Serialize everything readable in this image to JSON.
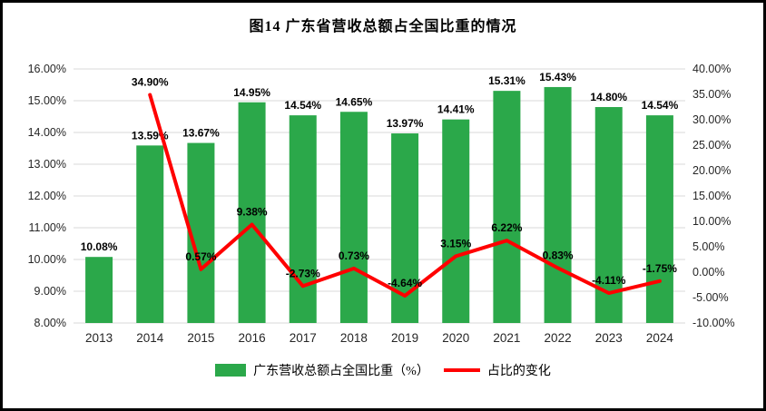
{
  "title": "图14  广东省营收总额占全国比重的情况",
  "legend": {
    "bars": "广东营收总额占全国比重（%）",
    "line": "占比的变化"
  },
  "colors": {
    "bar": "#2BA84A",
    "line": "#FF0000",
    "gridline": "#D9D9D9",
    "axis_text": "#262626",
    "label_text": "#000000"
  },
  "chart_data": {
    "type": "bar",
    "subtype": "bar+line combo, dual axis",
    "title": "图14  广东省营收总额占全国比重的情况",
    "categories": [
      "2013",
      "2014",
      "2015",
      "2016",
      "2017",
      "2018",
      "2019",
      "2020",
      "2021",
      "2022",
      "2023",
      "2024"
    ],
    "series": [
      {
        "name": "广东营收总额占全国比重（%）",
        "type": "bar",
        "axis": "left",
        "values": [
          10.08,
          13.59,
          13.67,
          14.95,
          14.54,
          14.65,
          13.97,
          14.41,
          15.31,
          15.43,
          14.8,
          14.54
        ]
      },
      {
        "name": "占比的变化",
        "type": "line",
        "axis": "right",
        "values": [
          null,
          34.9,
          0.57,
          9.38,
          -2.73,
          0.73,
          -4.64,
          3.15,
          6.22,
          0.83,
          -4.11,
          -1.75
        ]
      }
    ],
    "left_axis": {
      "min": 8,
      "max": 16,
      "step": 1,
      "format": "percent2",
      "tick_labels": [
        "8.00%",
        "9.00%",
        "10.00%",
        "11.00%",
        "12.00%",
        "13.00%",
        "14.00%",
        "15.00%",
        "16.00%"
      ]
    },
    "right_axis": {
      "min": -10,
      "max": 40,
      "step": 5,
      "format": "percent2",
      "tick_labels": [
        "-10.00%",
        "-5.00%",
        "0.00%",
        "5.00%",
        "10.00%",
        "15.00%",
        "20.00%",
        "25.00%",
        "30.00%",
        "35.00%",
        "40.00%"
      ]
    },
    "gridlines": true,
    "legend_position": "bottom"
  }
}
